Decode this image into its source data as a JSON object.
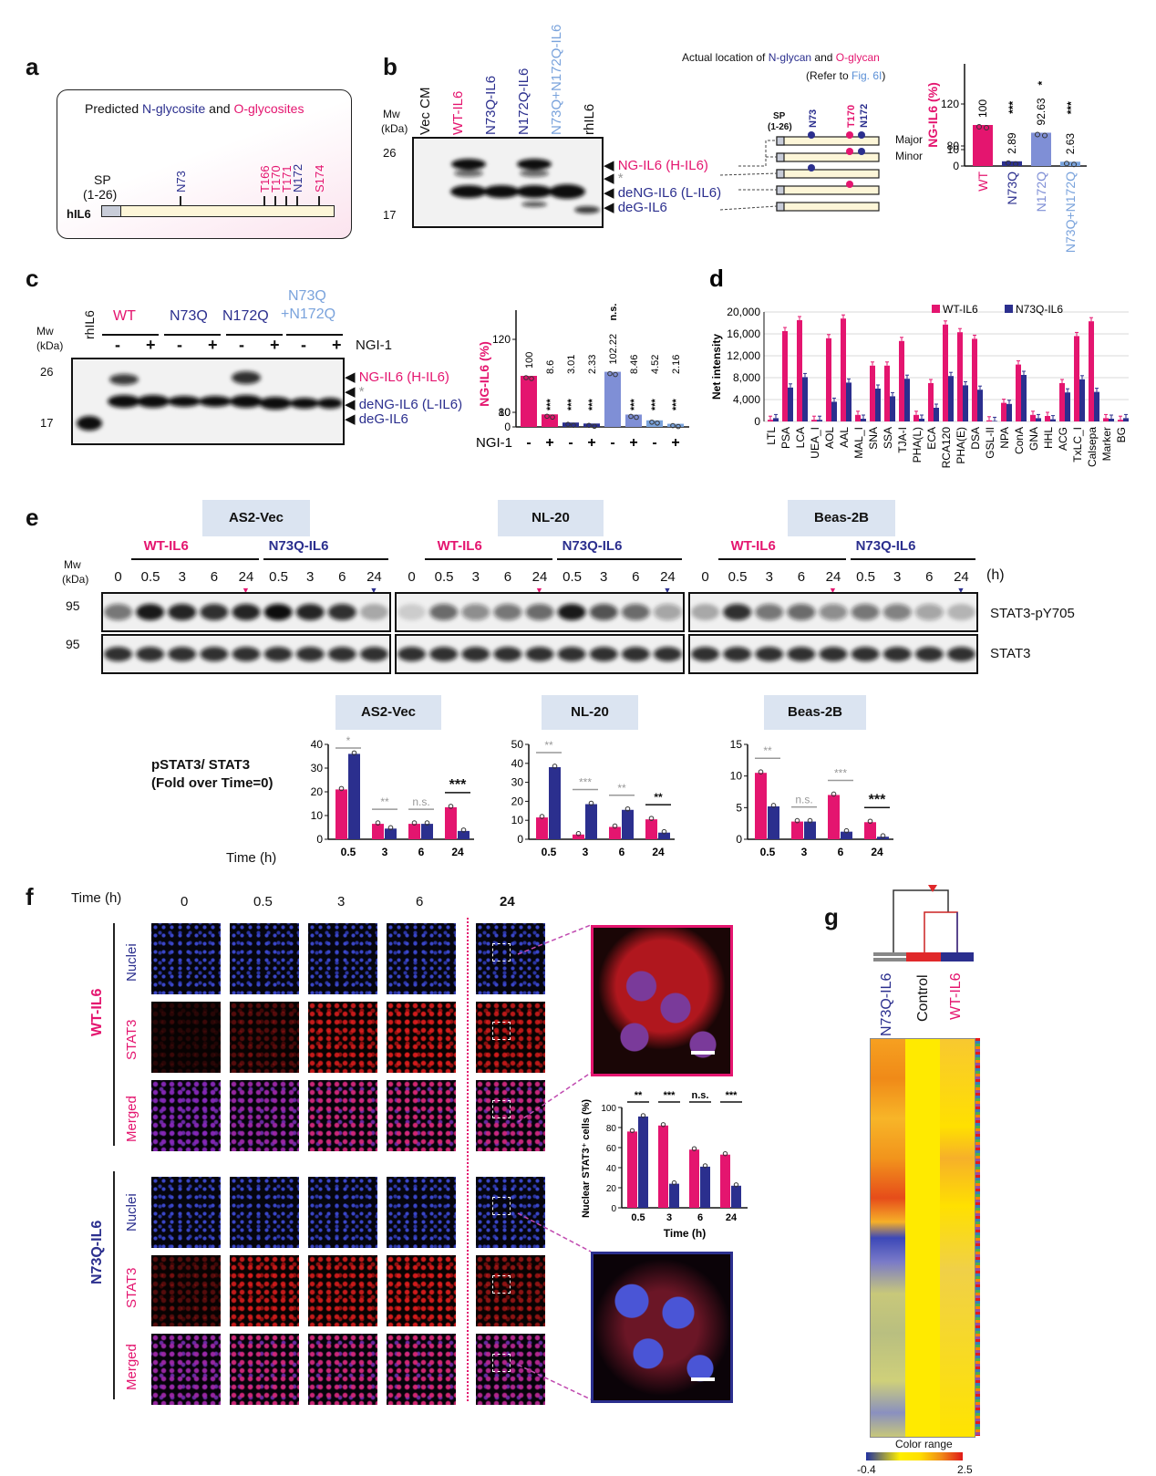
{
  "colors": {
    "pink": "#e4156f",
    "navy": "#2b2f8e",
    "blue": "#7f8fd6",
    "lightblue": "#7aa3dc",
    "gray": "#8c8c8c"
  },
  "a": {
    "label": "a",
    "title_pre": "Predicted ",
    "title_n": "N-glycosite",
    "title_mid": " and ",
    "title_o": "O-glycosites",
    "sp": "SP",
    "sp_range": "(1-26)",
    "protein": "hIL6",
    "sites_n": [
      "N73",
      "N172"
    ],
    "sites_o": [
      "T166",
      "T170",
      "T171",
      "S174"
    ]
  },
  "b": {
    "label": "b",
    "mw": "Mw",
    "kda": "(kDa)",
    "lanes": [
      "Vec CM",
      "WT-IL6",
      "N73Q-IL6",
      "N172Q-IL6",
      "N73Q+N172Q-IL6",
      "rhIL6"
    ],
    "mw_markers": [
      "26",
      "17"
    ],
    "band_labels": {
      "ng": "NG-IL6",
      "ng_h": "(H-IL6)",
      "star": "*",
      "deng": "deNG-IL6",
      "deng_l": "(L-IL6)",
      "deg": "deG-IL6"
    },
    "location_title_pre": "Actual location of ",
    "location_n": "N-glycan",
    "location_mid": " and ",
    "location_o": "O-glycan",
    "location_ref_pre": "(Refer to ",
    "location_ref_fig": "Fig. 6I",
    "location_ref_post": ")",
    "schema_sp": "SP",
    "schema_sp_range": "(1-26)",
    "schema_sites": [
      "N73",
      "T170",
      "N172"
    ],
    "major": "Major",
    "minor": "Minor"
  },
  "b_chart": {
    "type": "bar",
    "ylabel": "NG-IL6 (%)",
    "yticks": [
      "0",
      "10",
      "80",
      "120"
    ],
    "categories": [
      "WT",
      "N73Q",
      "N172Q",
      "N73Q+N172Q"
    ],
    "values": [
      100,
      2.89,
      92.63,
      2.63
    ],
    "value_labels": [
      "100",
      "2.89",
      "92.63",
      "2.63"
    ],
    "sig": [
      "",
      "***",
      "*",
      "***"
    ]
  },
  "c": {
    "label": "c",
    "mw": "Mw",
    "kda": "(kDa)",
    "rhil6": "rhIL6",
    "groups": [
      "WT",
      "N73Q",
      "N172Q",
      "N73Q",
      "+N172Q"
    ],
    "ngi": "NGI-1",
    "minus": "-",
    "plus": "+",
    "mw_markers": [
      "26",
      "17"
    ],
    "band_labels": {
      "ng": "NG-IL6",
      "ng_h": "(H-IL6)",
      "star": "*",
      "deng": "deNG-IL6",
      "deng_l": "(L-IL6)",
      "deg": "deG-IL6"
    }
  },
  "c_chart": {
    "type": "bar",
    "ylabel": "NG-IL6 (%)",
    "yticks": [
      "0",
      "10",
      "80",
      "120"
    ],
    "values": [
      100,
      8.6,
      3.01,
      2.33,
      102.22,
      8.46,
      4.52,
      2.16
    ],
    "value_labels": [
      "100",
      "8.6",
      "3.01",
      "2.33",
      "102.22",
      "8.46",
      "4.52",
      "2.16"
    ],
    "sig": [
      "",
      "***",
      "***",
      "***",
      "n.s.",
      "***",
      "***",
      "***"
    ],
    "ngi_row": [
      "-",
      "+",
      "-",
      "+",
      "-",
      "+",
      "-",
      "+"
    ],
    "ngi_label": "NGI-1"
  },
  "d_chart": {
    "label": "d",
    "type": "bar",
    "ylabel": "Net intensity",
    "yticks": [
      "0",
      "4,000",
      "8,000",
      "12,000",
      "16,000",
      "20,000"
    ],
    "legend": [
      "WT-IL6",
      "N73Q-IL6"
    ],
    "categories": [
      "LTL",
      "PSA",
      "LCA",
      "UEA_I",
      "AOL",
      "AAL",
      "MAL_I",
      "SNA",
      "SSA",
      "TJA-I",
      "PHA(L)",
      "ECA",
      "RCA120",
      "PHA(E)",
      "DSA",
      "GSL-II",
      "NPA",
      "ConA",
      "GNA",
      "HHL",
      "ACG",
      "TxLC_I",
      "Calsepa",
      "Marker",
      "BG"
    ],
    "series": [
      {
        "name": "WT-IL6",
        "values": [
          300,
          16500,
          18500,
          300,
          15200,
          18800,
          1200,
          10200,
          10200,
          14700,
          1200,
          7000,
          17700,
          16300,
          15100,
          200,
          3400,
          10400,
          1200,
          1000,
          7000,
          15600,
          18300,
          600,
          300
        ]
      },
      {
        "name": "N73Q-IL6",
        "values": [
          600,
          6200,
          8100,
          300,
          3600,
          7100,
          500,
          6000,
          4600,
          7800,
          500,
          2500,
          8300,
          6600,
          5800,
          100,
          3200,
          8500,
          600,
          400,
          5300,
          7700,
          5400,
          500,
          600
        ]
      }
    ]
  },
  "e": {
    "label": "e",
    "mw": "Mw",
    "kda": "(kDa)",
    "panels": [
      "AS2-Vec",
      "NL-20",
      "Beas-2B"
    ],
    "wt": "WT-IL6",
    "mut": "N73Q-IL6",
    "times": [
      "0",
      "0.5",
      "3",
      "6",
      "24",
      "0.5",
      "3",
      "6",
      "24"
    ],
    "h": "(h)",
    "mw95": "95",
    "row1": "STAT3-pY705",
    "row2": "STAT3",
    "chart_ylabel_1": "pSTAT3/ STAT3",
    "chart_ylabel_2": "(Fold over Time=0)",
    "time_label": "Time (h)"
  },
  "e_charts": [
    {
      "type": "bar",
      "title": "AS2-Vec",
      "categories": [
        "0.5",
        "3",
        "6",
        "24"
      ],
      "yticks": [
        "0",
        "10",
        "20",
        "30",
        "40"
      ],
      "ymax": 40,
      "series": [
        {
          "name": "WT-IL6",
          "values": [
            21,
            6.5,
            6.5,
            13.5
          ]
        },
        {
          "name": "N73Q-IL6",
          "values": [
            36,
            4.5,
            6.5,
            3.5
          ]
        }
      ],
      "sig": [
        "*",
        "**",
        "n.s.",
        "***"
      ]
    },
    {
      "type": "bar",
      "title": "NL-20",
      "categories": [
        "0.5",
        "3",
        "6",
        "24"
      ],
      "yticks": [
        "0",
        "10",
        "20",
        "30",
        "40",
        "50"
      ],
      "ymax": 50,
      "series": [
        {
          "name": "WT-IL6",
          "values": [
            11.5,
            2.5,
            6.5,
            10.5
          ]
        },
        {
          "name": "N73Q-IL6",
          "values": [
            38,
            18.5,
            15.5,
            3.5
          ]
        }
      ],
      "sig": [
        "**",
        "***",
        "**",
        "**"
      ]
    },
    {
      "type": "bar",
      "title": "Beas-2B",
      "categories": [
        "0.5",
        "3",
        "6",
        "24"
      ],
      "yticks": [
        "0",
        "5",
        "10",
        "15"
      ],
      "ymax": 15,
      "series": [
        {
          "name": "WT-IL6",
          "values": [
            10.5,
            2.8,
            7,
            2.7
          ]
        },
        {
          "name": "N73Q-IL6",
          "values": [
            5.2,
            2.8,
            1.2,
            0.4
          ]
        }
      ],
      "sig": [
        "**",
        "n.s.",
        "***",
        "***"
      ]
    }
  ],
  "f": {
    "label": "f",
    "time_label": "Time (h)",
    "times": [
      "0",
      "0.5",
      "3",
      "6",
      "24"
    ],
    "group_wt": "WT-IL6",
    "group_mut": "N73Q-IL6",
    "rows": [
      "Nuclei",
      "STAT3",
      "Merged"
    ]
  },
  "f_chart": {
    "type": "bar",
    "ylabel": "Nuclear STAT3⁺ cells (%)",
    "xlabel": "Time (h)",
    "categories": [
      "0.5",
      "3",
      "6",
      "24"
    ],
    "yticks": [
      "0",
      "20",
      "40",
      "60",
      "80",
      "100"
    ],
    "series": [
      {
        "name": "WT-IL6",
        "values": [
          76,
          82,
          58,
          53
        ]
      },
      {
        "name": "N73Q-IL6",
        "values": [
          91,
          24,
          41,
          22
        ]
      }
    ],
    "sig": [
      "**",
      "***",
      "n.s.",
      "***"
    ]
  },
  "g": {
    "label": "g",
    "columns": [
      "N73Q-IL6",
      "Control",
      "WT-IL6"
    ],
    "color_range": "Color range",
    "min": "-0.4",
    "max": "2.5"
  }
}
